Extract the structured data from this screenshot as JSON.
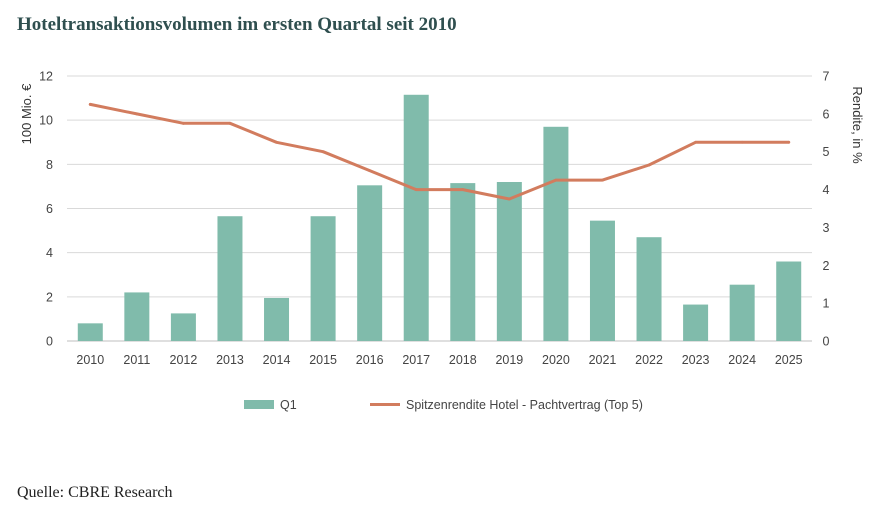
{
  "title": "Hoteltransaktionsvolumen im ersten Quartal seit 2010",
  "source": "Quelle: CBRE Research",
  "colors": {
    "bar": "#80bbab",
    "line": "#d27c5e",
    "grid": "#d9d9d9",
    "axis": "#bfbfbf"
  },
  "chart_data": {
    "type": "bar",
    "categories": [
      "2010",
      "2011",
      "2012",
      "2013",
      "2014",
      "2015",
      "2016",
      "2017",
      "2018",
      "2019",
      "2020",
      "2021",
      "2022",
      "2023",
      "2024",
      "2025"
    ],
    "series": [
      {
        "name": "Q1",
        "type": "bar",
        "axis": "left",
        "values": [
          0.8,
          2.2,
          1.25,
          5.65,
          1.95,
          5.65,
          7.05,
          11.15,
          7.15,
          7.2,
          9.7,
          5.45,
          4.7,
          1.65,
          2.55,
          3.6
        ]
      },
      {
        "name": "Spitzenrendite Hotel - Pachtvertrag (Top 5)",
        "type": "line",
        "axis": "right",
        "values": [
          6.25,
          6.0,
          5.75,
          5.75,
          5.25,
          5.0,
          4.5,
          4.0,
          4.0,
          3.75,
          4.25,
          4.25,
          4.65,
          5.25,
          5.25,
          5.25
        ]
      }
    ],
    "ylabel": "100 Mio. €",
    "ylim": [
      0,
      12
    ],
    "yticks": [
      "0",
      "2",
      "4",
      "6",
      "8",
      "10",
      "12"
    ],
    "y2label": "Rendite, in %",
    "y2lim": [
      0,
      7
    ],
    "y2ticks": [
      "0",
      "1",
      "2",
      "3",
      "4",
      "5",
      "6",
      "7"
    ],
    "grid": "horizontal",
    "legend": "bottom"
  }
}
